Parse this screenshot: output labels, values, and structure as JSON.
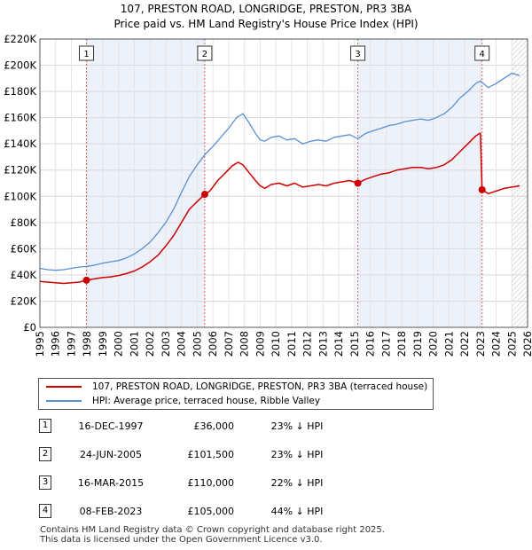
{
  "chart_data": {
    "type": "line",
    "title": "107, PRESTON ROAD, LONGRIDGE, PRESTON, PR3 3BA",
    "subtitle": "Price paid vs. HM Land Registry's House Price Index (HPI)",
    "xlabel": "",
    "ylabel": "",
    "xlim": [
      1995,
      2026
    ],
    "ylim": [
      0,
      220000
    ],
    "y_ticks": [
      0,
      20000,
      40000,
      60000,
      80000,
      100000,
      120000,
      140000,
      160000,
      180000,
      200000,
      220000
    ],
    "y_tick_labels": [
      "£0",
      "£20K",
      "£40K",
      "£60K",
      "£80K",
      "£100K",
      "£120K",
      "£140K",
      "£160K",
      "£180K",
      "£200K",
      "£220K"
    ],
    "x_ticks": [
      1995,
      1996,
      1997,
      1998,
      1999,
      2000,
      2001,
      2002,
      2003,
      2004,
      2005,
      2006,
      2007,
      2008,
      2009,
      2010,
      2011,
      2012,
      2013,
      2014,
      2015,
      2016,
      2017,
      2018,
      2019,
      2020,
      2021,
      2022,
      2023,
      2024,
      2025,
      2026
    ],
    "x_tick_labels": [
      "1995",
      "1996",
      "1997",
      "1998",
      "1999",
      "2000",
      "2001",
      "2002",
      "2003",
      "2004",
      "2005",
      "2006",
      "2007",
      "2008",
      "2009",
      "2010",
      "2011",
      "2012",
      "2013",
      "2014",
      "2015",
      "2016",
      "2017",
      "2018",
      "2019",
      "2020",
      "2021",
      "2022",
      "2023",
      "2024",
      "2025",
      "2026"
    ],
    "grid": true,
    "legend_position": "below-chart",
    "series": [
      {
        "name": "107, PRESTON ROAD, LONGRIDGE, PRESTON, PR3 3BA (terraced house)",
        "color": "#cc0000",
        "x": [
          1995.0,
          1995.5,
          1996.0,
          1996.5,
          1997.0,
          1997.5,
          1997.96,
          1998.5,
          1999.0,
          1999.5,
          2000.0,
          2000.5,
          2001.0,
          2001.5,
          2002.0,
          2002.5,
          2003.0,
          2003.5,
          2004.0,
          2004.5,
          2005.0,
          2005.48,
          2005.8,
          2006.3,
          2006.8,
          2007.2,
          2007.6,
          2007.9,
          2008.3,
          2008.7,
          2009.0,
          2009.3,
          2009.7,
          2010.2,
          2010.7,
          2011.2,
          2011.7,
          2012.2,
          2012.7,
          2013.2,
          2013.7,
          2014.2,
          2014.7,
          2015.21,
          2015.7,
          2016.2,
          2016.7,
          2017.2,
          2017.7,
          2018.2,
          2018.7,
          2019.2,
          2019.7,
          2020.2,
          2020.7,
          2021.2,
          2021.7,
          2022.2,
          2022.7,
          2022.95,
          2023.0,
          2023.11,
          2023.5,
          2024.0,
          2024.5,
          2025.0,
          2025.5
        ],
        "values": [
          35000,
          34500,
          34000,
          33500,
          34000,
          34500,
          36000,
          37000,
          38000,
          38500,
          39500,
          41000,
          43000,
          46000,
          50000,
          55000,
          62000,
          70000,
          80000,
          90000,
          96000,
          101500,
          104000,
          112000,
          118000,
          123000,
          126000,
          124000,
          118000,
          112000,
          108000,
          106000,
          109000,
          110000,
          108000,
          110000,
          107000,
          108000,
          109000,
          108000,
          110000,
          111000,
          112000,
          110000,
          113000,
          115000,
          117000,
          118000,
          120000,
          121000,
          122000,
          122000,
          121000,
          122000,
          124000,
          128000,
          134000,
          140000,
          146000,
          148000,
          148000,
          105000,
          102000,
          104000,
          106000,
          107000,
          108000
        ]
      },
      {
        "name": "HPI: Average price, terraced house, Ribble Valley",
        "color": "#5b8fd4",
        "x": [
          1995.0,
          1995.5,
          1996.0,
          1996.5,
          1997.0,
          1997.5,
          1998.0,
          1998.5,
          1999.0,
          1999.5,
          2000.0,
          2000.5,
          2001.0,
          2001.5,
          2002.0,
          2002.5,
          2003.0,
          2003.5,
          2004.0,
          2004.5,
          2005.0,
          2005.5,
          2006.0,
          2006.5,
          2007.0,
          2007.5,
          2007.9,
          2008.3,
          2008.7,
          2009.0,
          2009.3,
          2009.7,
          2010.2,
          2010.7,
          2011.2,
          2011.7,
          2012.2,
          2012.7,
          2013.2,
          2013.7,
          2014.2,
          2014.7,
          2015.2,
          2015.7,
          2016.2,
          2016.7,
          2017.2,
          2017.7,
          2018.2,
          2018.7,
          2019.2,
          2019.7,
          2020.2,
          2020.7,
          2021.2,
          2021.7,
          2022.2,
          2022.7,
          2023.0,
          2023.5,
          2024.0,
          2024.5,
          2025.0,
          2025.5
        ],
        "values": [
          45000,
          44000,
          43500,
          44000,
          45000,
          46000,
          46500,
          47500,
          49000,
          50000,
          51000,
          53000,
          56000,
          60000,
          65000,
          72000,
          80000,
          90000,
          103000,
          115000,
          124000,
          132000,
          138000,
          145000,
          152000,
          160000,
          163000,
          156000,
          148000,
          143000,
          142000,
          145000,
          146000,
          143000,
          144000,
          140000,
          142000,
          143000,
          142000,
          145000,
          146000,
          147000,
          144000,
          148000,
          150000,
          152000,
          154000,
          155000,
          157000,
          158000,
          159000,
          158000,
          160000,
          163000,
          168000,
          175000,
          180000,
          186000,
          188000,
          183000,
          186000,
          190000,
          194000,
          192000
        ]
      }
    ],
    "annotations": [
      {
        "label": "1",
        "x": 1997.96,
        "value": 36000
      },
      {
        "label": "2",
        "x": 2005.48,
        "value": 101500
      },
      {
        "label": "3",
        "x": 2015.21,
        "value": 110000
      },
      {
        "label": "4",
        "x": 2023.11,
        "value": 105000
      }
    ],
    "hatched_from": 2025.0
  },
  "transactions": [
    {
      "num": "1",
      "date": "16-DEC-1997",
      "price": "£36,000",
      "hpi": "23% ↓ HPI"
    },
    {
      "num": "2",
      "date": "24-JUN-2005",
      "price": "£101,500",
      "hpi": "23% ↓ HPI"
    },
    {
      "num": "3",
      "date": "16-MAR-2015",
      "price": "£110,000",
      "hpi": "22% ↓ HPI"
    },
    {
      "num": "4",
      "date": "08-FEB-2023",
      "price": "£105,000",
      "hpi": "44% ↓ HPI"
    }
  ],
  "footer": {
    "line1": "Contains HM Land Registry data © Crown copyright and database right 2025.",
    "line2": "This data is licensed under the Open Government Licence v3.0."
  }
}
